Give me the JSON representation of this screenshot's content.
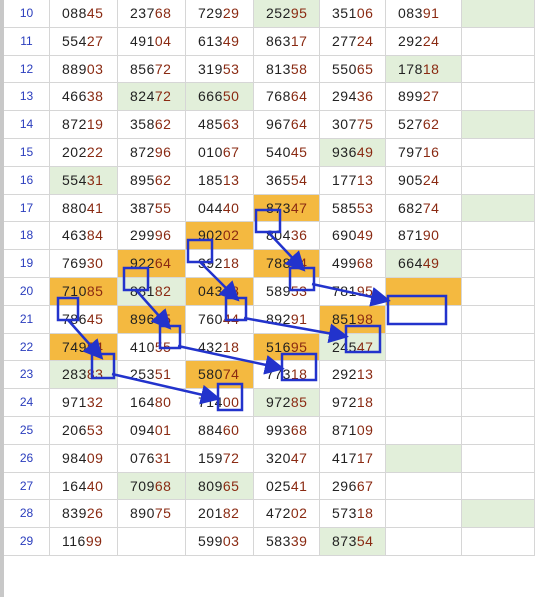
{
  "rows": [
    {
      "n": "10",
      "c": [
        "08845",
        "23768",
        "72929",
        "25295",
        "35106",
        "08391",
        ""
      ],
      "bg": [
        "",
        "",
        "",
        "g",
        "",
        "",
        "g"
      ]
    },
    {
      "n": "11",
      "c": [
        "55427",
        "49104",
        "61349",
        "86317",
        "27724",
        "29224",
        ""
      ],
      "bg": [
        "",
        "",
        "",
        "",
        "",
        "",
        ""
      ]
    },
    {
      "n": "12",
      "c": [
        "88903",
        "85672",
        "31953",
        "81358",
        "55065",
        "17818",
        ""
      ],
      "bg": [
        "",
        "",
        "",
        "",
        "",
        "g",
        ""
      ]
    },
    {
      "n": "13",
      "c": [
        "46638",
        "82472",
        "66650",
        "76864",
        "29436",
        "89927",
        ""
      ],
      "bg": [
        "",
        "g",
        "g",
        "",
        "",
        "",
        ""
      ]
    },
    {
      "n": "14",
      "c": [
        "87219",
        "35862",
        "48563",
        "96764",
        "30775",
        "52762",
        ""
      ],
      "bg": [
        "",
        "",
        "",
        "",
        "",
        "",
        "g"
      ]
    },
    {
      "n": "15",
      "c": [
        "20222",
        "87296",
        "01067",
        "54045",
        "93649",
        "79716",
        ""
      ],
      "bg": [
        "",
        "",
        "",
        "",
        "g",
        "",
        ""
      ]
    },
    {
      "n": "16",
      "c": [
        "55431",
        "89562",
        "18513",
        "36554",
        "17713",
        "90524",
        ""
      ],
      "bg": [
        "g",
        "",
        "",
        "",
        "",
        "",
        ""
      ]
    },
    {
      "n": "17",
      "c": [
        "88041",
        "38755",
        "04440",
        "87347",
        "58553",
        "68274",
        ""
      ],
      "bg": [
        "",
        "",
        "",
        "o",
        "",
        "",
        "g"
      ]
    },
    {
      "n": "18",
      "c": [
        "46384",
        "29996",
        "90202",
        "80436",
        "69049",
        "87190",
        ""
      ],
      "bg": [
        "",
        "",
        "o",
        "",
        "",
        "",
        ""
      ]
    },
    {
      "n": "19",
      "c": [
        "76930",
        "92264",
        "39218",
        "78864",
        "49968",
        "66449",
        ""
      ],
      "bg": [
        "",
        "o",
        "",
        "o",
        "",
        "g",
        ""
      ]
    },
    {
      "n": "20",
      "c": [
        "71085",
        "88182",
        "04348",
        "58953",
        "78195",
        "",
        ""
      ],
      "bg": [
        "o",
        "g",
        "o",
        "",
        "",
        "o",
        ""
      ]
    },
    {
      "n": "21",
      "c": [
        "78645",
        "89665",
        "76044",
        "89291",
        "85198",
        "",
        ""
      ],
      "bg": [
        "",
        "o",
        "",
        "",
        "o",
        "",
        ""
      ]
    },
    {
      "n": "22",
      "c": [
        "74954",
        "41055",
        "43218",
        "51695",
        "24547",
        "",
        ""
      ],
      "bg": [
        "o",
        "",
        "",
        "o",
        "g",
        "",
        ""
      ]
    },
    {
      "n": "23",
      "c": [
        "28383",
        "25351",
        "58074",
        "77318",
        "29213",
        "",
        ""
      ],
      "bg": [
        "g",
        "",
        "o",
        "",
        "",
        "",
        ""
      ]
    },
    {
      "n": "24",
      "c": [
        "97132",
        "16480",
        "71400",
        "97285",
        "97218",
        "",
        ""
      ],
      "bg": [
        "",
        "",
        "",
        "g",
        "",
        "",
        ""
      ]
    },
    {
      "n": "25",
      "c": [
        "20653",
        "09401",
        "88460",
        "99368",
        "87109",
        "",
        ""
      ],
      "bg": [
        "",
        "",
        "",
        "",
        "",
        "",
        ""
      ]
    },
    {
      "n": "26",
      "c": [
        "98409",
        "07631",
        "15972",
        "32047",
        "41717",
        "",
        ""
      ],
      "bg": [
        "",
        "",
        "",
        "",
        "",
        "g",
        ""
      ]
    },
    {
      "n": "27",
      "c": [
        "16440",
        "70968",
        "80965",
        "02541",
        "29667",
        "",
        ""
      ],
      "bg": [
        "",
        "g",
        "g",
        "",
        "",
        "",
        ""
      ]
    },
    {
      "n": "28",
      "c": [
        "83926",
        "89075",
        "20182",
        "47202",
        "57318",
        "",
        ""
      ],
      "bg": [
        "",
        "",
        "",
        "",
        "",
        "",
        "g"
      ]
    },
    {
      "n": "29",
      "c": [
        "11699",
        "",
        "59903",
        "58339",
        "87354",
        "",
        ""
      ],
      "bg": [
        "",
        "",
        "",
        "",
        "g",
        "",
        ""
      ]
    }
  ],
  "colors": {
    "highlight": "#f4b940",
    "green": "#e2efda",
    "annotation": "#2233cc"
  }
}
